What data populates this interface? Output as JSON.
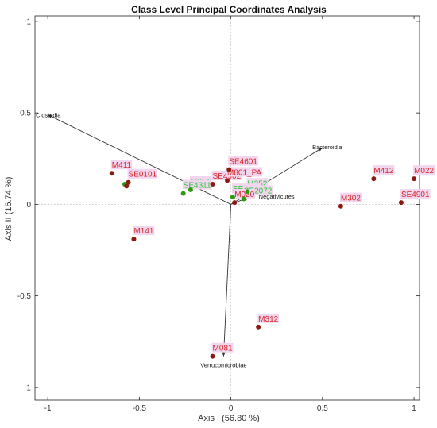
{
  "colors": {
    "point": "#8b1a10",
    "point_green": "#2e9a10",
    "label_red": "#d8282a",
    "label_green": "#22c73a",
    "label_bg": "#f2d6ef",
    "vector": "#333333",
    "zero_line": "#bbbbbb"
  },
  "chart_data": {
    "type": "scatter",
    "title": "Class Level Principal Coordinates Analysis",
    "xlabel": "Axis I (56.80 %)",
    "ylabel": "Axis II (16.74 %)",
    "xlim": [
      -1.07,
      1.03
    ],
    "ylim": [
      -1.07,
      1.03
    ],
    "xticks": [
      -1,
      -0.5,
      0,
      0.5,
      1
    ],
    "yticks": [
      -1,
      -0.5,
      0,
      0.5,
      1
    ],
    "xtick_labels": [
      "-1",
      "-0.5",
      "0",
      "0.5",
      "1"
    ],
    "ytick_labels": [
      "-1",
      "-0.5",
      "0",
      "0.5",
      "1"
    ],
    "grid": false,
    "points": [
      {
        "label": "M411",
        "x": -0.65,
        "y": 0.17,
        "color": "red"
      },
      {
        "label": "SE0101",
        "x": -0.56,
        "y": 0.12,
        "color": "red"
      },
      {
        "label": "M141",
        "x": -0.53,
        "y": -0.19,
        "color": "red"
      },
      {
        "label": "M251",
        "x": -0.22,
        "y": 0.08,
        "color": "green"
      },
      {
        "label": "SE4311",
        "x": -0.26,
        "y": 0.06,
        "color": "green"
      },
      {
        "label": "SE4902",
        "x": -0.1,
        "y": 0.11,
        "color": "red"
      },
      {
        "label": "SE4601",
        "x": -0.01,
        "y": 0.19,
        "color": "red"
      },
      {
        "label": "M801_PA",
        "x": -0.02,
        "y": 0.13,
        "color": "red"
      },
      {
        "label": "M252",
        "x": 0.09,
        "y": 0.07,
        "color": "green"
      },
      {
        "label": "SE0401",
        "x": 0.01,
        "y": 0.04,
        "color": "green"
      },
      {
        "label": "SE2072",
        "x": 0.07,
        "y": 0.03,
        "color": "green"
      },
      {
        "label": "M020",
        "x": 0.02,
        "y": 0.01,
        "color": "red"
      },
      {
        "label": "M302",
        "x": 0.6,
        "y": -0.01,
        "color": "red"
      },
      {
        "label": "M412",
        "x": 0.78,
        "y": 0.14,
        "color": "red"
      },
      {
        "label": "M022",
        "x": 1.0,
        "y": 0.14,
        "color": "red"
      },
      {
        "label": "SE4901",
        "x": 0.93,
        "y": 0.01,
        "color": "red"
      },
      {
        "label": "M312",
        "x": 0.15,
        "y": -0.67,
        "color": "red"
      },
      {
        "label": "M081",
        "x": -0.1,
        "y": -0.83,
        "color": "red"
      }
    ],
    "unlabeled_points": [
      {
        "x": -0.58,
        "y": 0.11,
        "color": "green"
      },
      {
        "x": -0.57,
        "y": 0.1,
        "color": "red"
      }
    ],
    "vectors": [
      {
        "label": "Clostridia",
        "x": -1.0,
        "y": 0.49
      },
      {
        "label": "Bacteroidia",
        "x": 0.5,
        "y": 0.31
      },
      {
        "label": "Negativicutes",
        "x": 0.1,
        "y": 0.04
      },
      {
        "label": "Verrucomicrobiae",
        "x": -0.04,
        "y": -0.83
      }
    ]
  }
}
